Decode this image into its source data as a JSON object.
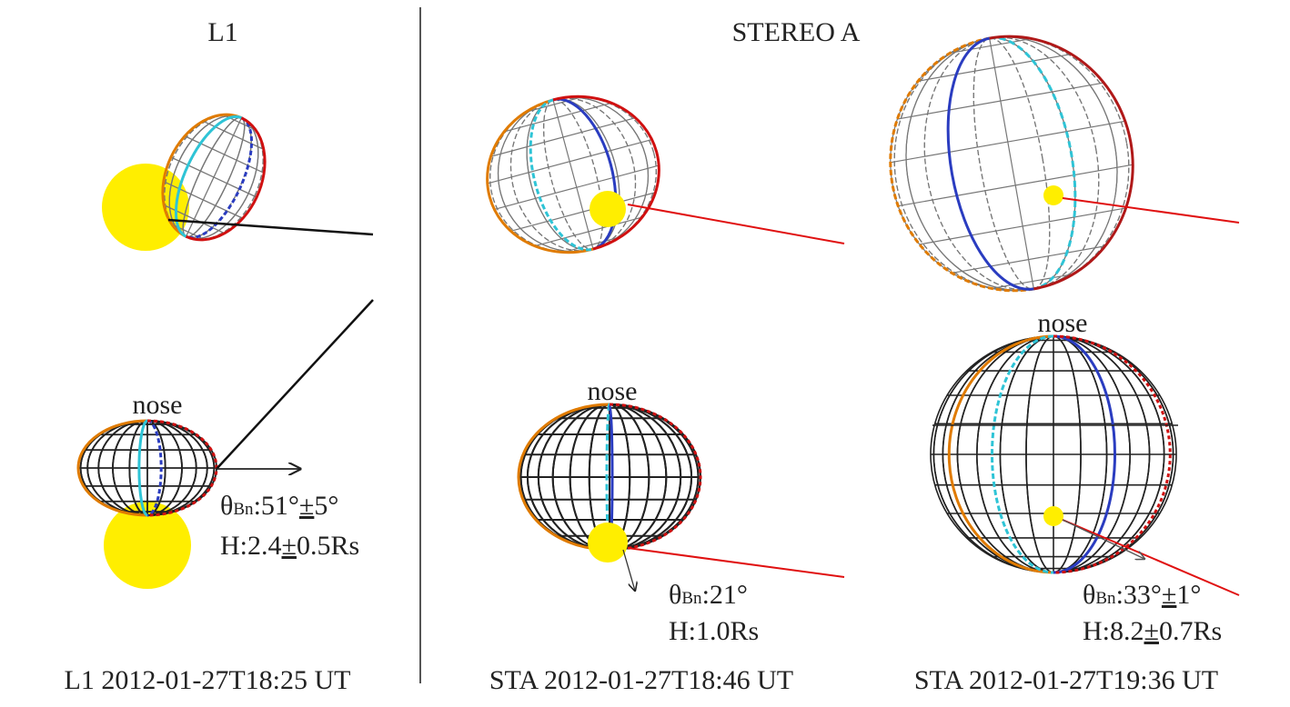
{
  "headers": [
    "L1",
    "STEREO A"
  ],
  "panels": [
    {
      "nose": "nose",
      "theta": "θ",
      "theta_sub": "Bn",
      "theta_value": ":51°",
      "theta_pm": "±",
      "theta_err": "5°",
      "height": "H:2.4",
      "height_pm": "±",
      "height_err": "0.5Rs",
      "caption": "L1 2012-01-27T18:25 UT"
    },
    {
      "nose": "nose",
      "theta": "θ",
      "theta_sub": "Bn",
      "theta_value": ":21°",
      "height": "H:1.0Rs",
      "caption": "STA 2012-01-27T18:46 UT"
    },
    {
      "nose": "nose",
      "theta": "θ",
      "theta_sub": "Bn",
      "theta_value": ":33°",
      "theta_pm": "±",
      "theta_err": "1°",
      "height": "H:8.2",
      "height_pm": "±",
      "height_err": "0.7Rs",
      "caption": "STA 2012-01-27T19:36 UT"
    }
  ]
}
